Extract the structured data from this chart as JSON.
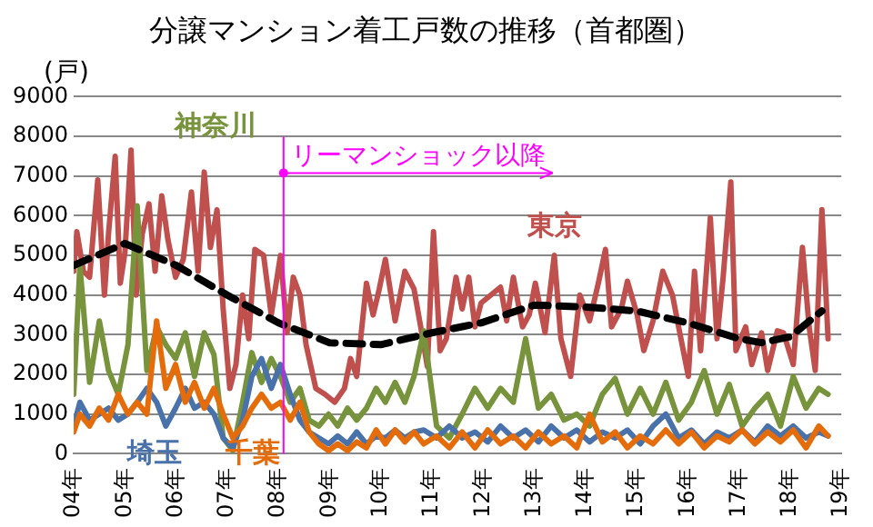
{
  "chart_data": {
    "type": "line",
    "title": "分譲マンション着工戸数の推移（首都圏）",
    "ylabel": "(戸)",
    "legend": false,
    "grid": "y",
    "marker": "none",
    "line_style": "solid",
    "ylim": [
      0,
      9000
    ],
    "yticks": [
      0,
      1000,
      2000,
      3000,
      4000,
      5000,
      6000,
      7000,
      8000,
      9000
    ],
    "xlim": [
      4,
      19
    ],
    "xticks": [
      {
        "value": 4,
        "label": "04年"
      },
      {
        "value": 5,
        "label": "05年"
      },
      {
        "value": 6,
        "label": "06年"
      },
      {
        "value": 7,
        "label": "07年"
      },
      {
        "value": 8,
        "label": "08年"
      },
      {
        "value": 9,
        "label": "09年"
      },
      {
        "value": 10,
        "label": "10年"
      },
      {
        "value": 11,
        "label": "11年"
      },
      {
        "value": 12,
        "label": "12年"
      },
      {
        "value": 13,
        "label": "13年"
      },
      {
        "value": 14,
        "label": "14年"
      },
      {
        "value": 15,
        "label": "15年"
      },
      {
        "value": 16,
        "label": "16年"
      },
      {
        "value": 17,
        "label": "17年"
      },
      {
        "value": 18,
        "label": "18年"
      },
      {
        "value": 19,
        "label": "19年"
      }
    ],
    "x": [
      4.0,
      4.12,
      4.31,
      4.5,
      4.68,
      4.87,
      5.06,
      5.24,
      5.43,
      5.62,
      5.8,
      5.99,
      6.18,
      6.36,
      6.55,
      6.74,
      6.92,
      7.11,
      7.3,
      7.48,
      7.67,
      7.86,
      8.04,
      8.23,
      8.42,
      8.6,
      8.79,
      8.98,
      9.16,
      9.35,
      9.53,
      9.72,
      9.91,
      10.09,
      10.28,
      10.47,
      10.65,
      10.84,
      11.09,
      11.34,
      11.59,
      11.84,
      12.09,
      12.34,
      12.59,
      12.83,
      13.08,
      13.33,
      13.58,
      13.83,
      14.08,
      14.33,
      14.58,
      14.82,
      15.07,
      15.32,
      15.57,
      15.82,
      16.07,
      16.32,
      16.57,
      16.81,
      17.06,
      17.31,
      17.56,
      17.81,
      18.06,
      18.31,
      18.56,
      18.74
    ],
    "series": [
      {
        "name": "東京",
        "color": "#c0504d",
        "x": [
          4.0,
          4.06,
          4.19,
          4.31,
          4.47,
          4.6,
          4.68,
          4.81,
          4.91,
          5.0,
          5.12,
          5.22,
          5.34,
          5.47,
          5.59,
          5.72,
          5.84,
          5.99,
          6.14,
          6.3,
          6.43,
          6.55,
          6.67,
          6.8,
          6.92,
          7.05,
          7.17,
          7.3,
          7.42,
          7.54,
          7.71,
          7.86,
          8.04,
          8.17,
          8.29,
          8.42,
          8.54,
          8.73,
          8.91,
          9.1,
          9.29,
          9.41,
          9.53,
          9.72,
          9.85,
          9.97,
          10.09,
          10.28,
          10.47,
          10.65,
          10.78,
          10.91,
          11.03,
          11.16,
          11.28,
          11.47,
          11.59,
          11.72,
          11.84,
          11.96,
          12.15,
          12.34,
          12.46,
          12.59,
          12.77,
          12.9,
          13.02,
          13.21,
          13.39,
          13.52,
          13.71,
          13.89,
          14.08,
          14.26,
          14.39,
          14.51,
          14.7,
          14.82,
          15.01,
          15.14,
          15.32,
          15.51,
          15.7,
          15.82,
          16.01,
          16.13,
          16.25,
          16.44,
          16.57,
          16.69,
          16.84,
          16.94,
          17.13,
          17.25,
          17.44,
          17.56,
          17.75,
          17.87,
          18.06,
          18.24,
          18.37,
          18.49,
          18.62,
          18.74
        ],
        "values": [
          4600,
          5600,
          4600,
          4450,
          6900,
          4000,
          5550,
          7500,
          4300,
          5070,
          7650,
          4000,
          5550,
          6300,
          4600,
          6500,
          5400,
          4450,
          4900,
          6600,
          4600,
          7100,
          5200,
          6150,
          3650,
          1650,
          2250,
          4000,
          2900,
          5150,
          5000,
          3500,
          5000,
          3050,
          4450,
          4000,
          2750,
          1650,
          1500,
          1300,
          1650,
          2400,
          1950,
          4300,
          3500,
          4150,
          4900,
          3350,
          4600,
          4150,
          3200,
          2200,
          5600,
          2600,
          2900,
          4450,
          3650,
          4450,
          3200,
          3800,
          4000,
          4200,
          3350,
          4450,
          3200,
          3500,
          4300,
          3050,
          5000,
          2900,
          1950,
          4000,
          3350,
          4350,
          5150,
          3200,
          3650,
          4350,
          3500,
          2600,
          3350,
          4600,
          4000,
          3200,
          1950,
          4600,
          2600,
          5950,
          2900,
          4450,
          6850,
          2600,
          3200,
          2250,
          3050,
          2100,
          3100,
          3050,
          2250,
          5200,
          3200,
          2100,
          6150,
          2900
        ]
      },
      {
        "name": "神奈川",
        "color": "#77933c",
        "values": [
          1500,
          4750,
          1800,
          3350,
          2100,
          1500,
          2750,
          6250,
          2100,
          3200,
          2750,
          2400,
          3050,
          1950,
          3050,
          2500,
          400,
          80,
          1300,
          2550,
          1800,
          2400,
          1950,
          1300,
          1650,
          850,
          700,
          1000,
          700,
          1150,
          850,
          1150,
          1650,
          1300,
          1800,
          1300,
          1950,
          3100,
          700,
          400,
          1000,
          1650,
          1150,
          1650,
          1300,
          2900,
          1150,
          1500,
          850,
          1000,
          700,
          1500,
          1900,
          1000,
          1650,
          1000,
          1800,
          850,
          1300,
          2100,
          1000,
          1750,
          700,
          1150,
          1500,
          700,
          1950,
          1150,
          1650,
          1500
        ]
      },
      {
        "name": "埼玉",
        "color": "#4a72aa",
        "values": [
          700,
          1300,
          850,
          1000,
          1150,
          850,
          1000,
          1300,
          1650,
          1300,
          700,
          1150,
          1650,
          1150,
          1300,
          1000,
          400,
          150,
          850,
          1950,
          2400,
          1650,
          2250,
          1500,
          850,
          550,
          400,
          250,
          450,
          250,
          550,
          250,
          450,
          400,
          600,
          400,
          550,
          600,
          400,
          700,
          400,
          550,
          300,
          700,
          400,
          600,
          300,
          700,
          400,
          600,
          300,
          550,
          400,
          600,
          250,
          700,
          1000,
          400,
          600,
          250,
          550,
          400,
          600,
          300,
          700,
          450,
          700,
          400,
          550,
          450
        ]
      },
      {
        "name": "千葉",
        "color": "#e46c0a",
        "values": [
          550,
          1000,
          700,
          1150,
          850,
          1500,
          1000,
          1300,
          1000,
          3350,
          1650,
          2250,
          1300,
          1800,
          1150,
          1650,
          1000,
          400,
          700,
          1150,
          1500,
          1150,
          1300,
          850,
          1300,
          550,
          250,
          80,
          250,
          80,
          300,
          150,
          600,
          250,
          600,
          300,
          550,
          250,
          450,
          150,
          550,
          150,
          600,
          250,
          450,
          150,
          550,
          250,
          450,
          150,
          1000,
          300,
          550,
          150,
          450,
          250,
          600,
          250,
          550,
          150,
          450,
          300,
          600,
          250,
          550,
          300,
          600,
          150,
          700,
          450
        ]
      },
      {
        "type": "line",
        "line_style": "dashed",
        "color": "#000000",
        "x": [
          4.0,
          5.0,
          6.0,
          7.0,
          8.0,
          9.0,
          10.0,
          11.0,
          11.96,
          13.0,
          14.0,
          15.0,
          16.0,
          17.0,
          17.44,
          18.0,
          18.62
        ],
        "values": [
          4750,
          5300,
          4750,
          4000,
          3300,
          2800,
          2750,
          3050,
          3300,
          3750,
          3700,
          3600,
          3300,
          2900,
          2800,
          2950,
          3600
        ]
      }
    ],
    "ref_lines": [
      {
        "axis": "x",
        "value": 8.1,
        "label": "リーマンショック以降",
        "color": "#ff00ff"
      }
    ]
  }
}
